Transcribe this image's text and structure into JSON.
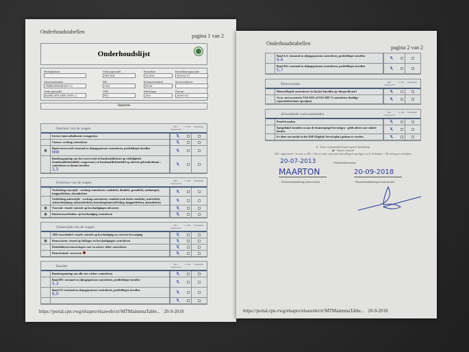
{
  "page1": {
    "header": "Onderhoudstabellen",
    "pageno": "pagina 1 van 2",
    "title": "Onderhoudslijst",
    "fields": [
      {
        "label": "Werkplaatsnr.",
        "value": ""
      },
      {
        "label": "Chassisnummer",
        "value": "TMBEA9NH4K5207 14"
      },
      {
        "label": "Verkoopmodel",
        "value": "RAPID SPB AMB TS99/1.2"
      },
      {
        "label": "Verkoopmodel",
        "value": "NH13GD"
      },
      {
        "label": "MC",
        "value": "CJZC"
      },
      {
        "label": "VBC",
        "value": "P02"
      },
      {
        "label": "Kenteken",
        "value": "XL281Z"
      },
      {
        "label": "Kilometerstand",
        "value": "84136"
      },
      {
        "label": "Modeljaar",
        "value": "2016"
      },
      {
        "label": "Kentekenregistratie",
        "value": "2016-02-10"
      },
      {
        "label": "Servicedrijver",
        "value": ""
      },
      {
        "label": "Datum",
        "value": "2018-9-20"
      }
    ],
    "inspectie": "Inspectie",
    "columns": {
      "ok": "OK / uitgevoerd",
      "nok": "n. OK",
      "fix": "Verhelpen"
    },
    "sections": [
      {
        "title": "Interieur van de wagen",
        "rows": [
          {
            "text": "Service-intervalindicatie: terugzetten",
            "mark": "",
            "hw": ""
          },
          {
            "text": "Claxon: werking controleren",
            "mark": "",
            "hw": ""
          },
          {
            "text": "Band reservewiel: toestand en slijtagepatroon controleren, profieldiepte invullen",
            "mark": "visual",
            "hw": "NW"
          },
          {
            "text": "Bandenspanning van het reservewiel of bandenafdichtset op volledigheid (bandenafdichtmiddel, compressor) en bandenafdichtmiddel op uiterste gebruiksdatum ; controleren en datum invullen",
            "mark": "",
            "hw": "2,5"
          }
        ]
      },
      {
        "title": "Exterieur van de wagen",
        "rows": [
          {
            "text": "Verlichting voorzijde - werking controleren: stadslicht, dimlicht, grootlicht, mistlampen, knipperlichten, alarmlichten",
            "mark": "",
            "hw": ""
          },
          {
            "text": "Verlichting achterzijde - werking controleren: remlicht (ook derde remlicht), achterlicht, achteruitrijlamp, mistachterlicht, kentekenplaatverlichting, knipperlichten, alarmlichten",
            "mark": "",
            "hw": ""
          },
          {
            "text": "Voorruit: visuele controle op beschadigingen uitvoeren",
            "mark": "visual",
            "hw": ""
          },
          {
            "text": "Ruitenwisserbladen: op beschadiging controleren",
            "mark": "visual",
            "hw": ""
          }
        ]
      },
      {
        "title": "Onderzijde van de wagen",
        "rows": [
          {
            "text": "ABS sensorkabel: visuele controle op beschadiging en correcte bevestiging",
            "mark": "",
            "hw": ""
          },
          {
            "text": "Remsysteem: visueel op lekkages en beschadigingen controleren",
            "mark": "visual",
            "hw": ""
          },
          {
            "text": "Remblokken/remvoeringen voor en achter: dikte controleren",
            "mark": "",
            "hw": ""
          },
          {
            "text": "Remvloeistof: verversen",
            "mark": "extra",
            "hw": ""
          }
        ]
      },
      {
        "title": "Banden",
        "rows": [
          {
            "text": "Bandenspanning van alle vier wielen: controleren",
            "mark": "",
            "hw": ""
          },
          {
            "text": "Band RV: toestand en slijtagepatroon controleren, profieldiepte invullen",
            "mark": "",
            "hw": "5,3"
          },
          {
            "text": "Band LV: toestand en slijtagepatroon controleren, profieldiepte invullen",
            "mark": "",
            "hw": "6,0"
          },
          {
            "text": "",
            "mark": "",
            "hw": ""
          }
        ]
      }
    ],
    "footer_url": "https://portal.cpn.vwg/elsapro/elsaweb/ctr/MTMaintenaTable...",
    "footer_date": "20-9-2018"
  },
  "page2": {
    "header": "Onderhoudstabellen",
    "pageno": "pagina 2 van 2",
    "sections": [
      {
        "title": "",
        "rows": [
          {
            "text": "Band LA: toestand en slijtagepatroon controleren, profieldiepte invullen",
            "mark": "",
            "hw": "6,6"
          },
          {
            "text": "Band RA: toestand en slijtagepatroon controleren, profieldiepte invullen",
            "mark": "",
            "hw": "5,7"
          }
        ]
      },
      {
        "title": "Motorruimte",
        "rows": [
          {
            "text": "Motorolliepeil controleren: let bij het bijvullen op oliespecificatie!",
            "mark": "",
            "hw": ""
          },
          {
            "text": "Accu: met accutester VAS 6161 of VAS 5097 A controleren (huidige reparatiebrochure opvolgen)",
            "mark": "",
            "hw": ""
          }
        ]
      },
      {
        "title": "Afrondende werkzaamheden",
        "rows": [
          {
            "text": "Proefrit maken",
            "mark": "",
            "hw": ""
          },
          {
            "text": "Spiegellabel invullen en aan de binnenspiegel bevestigen - geldt alleen voor enkele landen.",
            "mark": "",
            "hw": ""
          },
          {
            "text": "Er dient een notitie in het DSP (Digitale Serviceplan) gedaan te worden.",
            "mark": "",
            "hw": ""
          }
        ]
      }
    ],
    "legend": [
      "● - Extra werkzaamheid tegen aparte berekening",
      "◉ - Visuele controle",
      "OK / uitgevoerd = In orde    n. OK = Niet in orde, reparatie-aanvullingen opvolgen a.u.b.    Verhelpen = De storing is verholpen"
    ],
    "maintenance_label": "Onderhoudsmonteur",
    "hw_date1": "20-07-2013",
    "hw_name": "MAARTON",
    "hw_date2": "20-09-2018",
    "sig_left": "Datum/handtekening (uitvoerende)",
    "sig_right": "Datum/handtekening (eindcontrole)",
    "footer_url": "https://portal.cpn.vwg/elsapro/elsaweb/ctr/MTMaintenaTable...",
    "footer_date": "20-9-2018"
  },
  "colors": {
    "ink": "#3a48a8",
    "extra_dot": "#8b1a1a",
    "table_rule": "#4a5a78"
  }
}
